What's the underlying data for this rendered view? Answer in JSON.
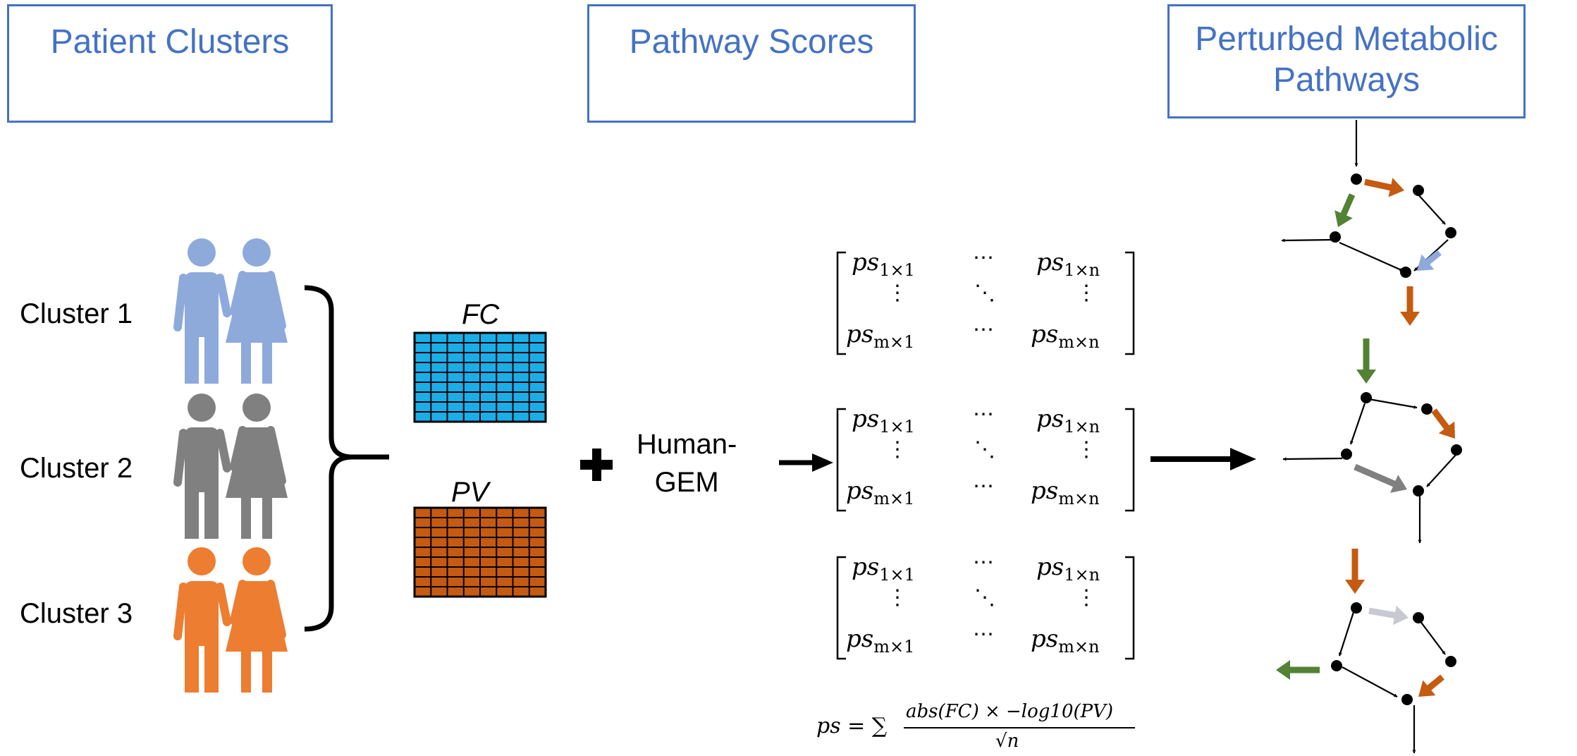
{
  "headers": {
    "patient_clusters": "Patient Clusters",
    "pathway_scores": "Pathway Scores",
    "perturbed_line1": "Perturbed Metabolic",
    "perturbed_line2": "Pathways"
  },
  "clusters": [
    {
      "label": "Cluster 1",
      "color": "#8eaadb"
    },
    {
      "label": "Cluster 2",
      "color": "#808080"
    },
    {
      "label": "Cluster 3",
      "color": "#ed7d31"
    }
  ],
  "matrices": {
    "fc": {
      "label": "FC",
      "color": "#1aaee9"
    },
    "pv": {
      "label": "PV",
      "color": "#c55a11"
    }
  },
  "plus_symbol": "✚",
  "human_gem_line1": "Human-",
  "human_gem_line2": "GEM",
  "score_matrix": {
    "var": "ps",
    "top_left_sub": "1×1",
    "top_right_sub": "1×n",
    "bottom_left_sub": "m×1",
    "bottom_right_sub": "m×n",
    "hdots": "⋯",
    "vdots": "⋮",
    "ddots": "⋱"
  },
  "formula": {
    "lhs": "ps = ∑",
    "numerator": "abs(FC) × −log10(PV)",
    "denominator": "√n"
  },
  "arrow_colors": {
    "orange": "#c55a11",
    "green": "#548235",
    "light_blue": "#8eaadb",
    "gray": "#808080",
    "light_gray": "#c9c9d3",
    "black": "#000000"
  }
}
